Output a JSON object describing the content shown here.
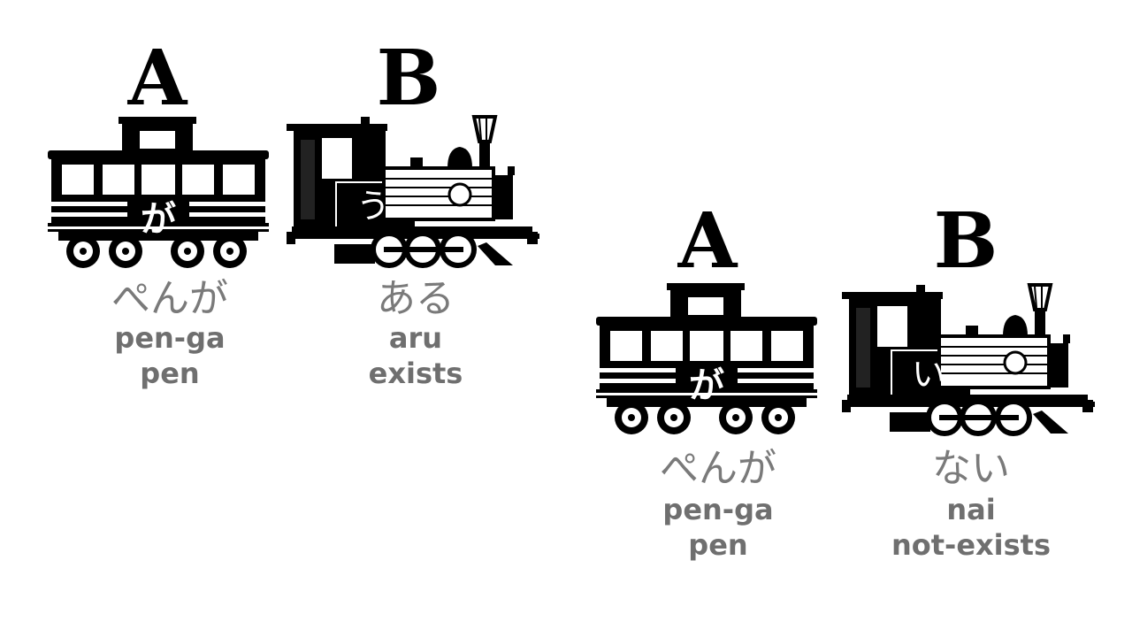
{
  "groups": [
    {
      "a_label": "A",
      "b_label": "B",
      "car_particle": "が",
      "loco_kana": "う",
      "word_a_kana": "ぺんが",
      "word_a_romaji": "pen-ga",
      "word_a_gloss": "pen",
      "word_b_kana": "ある",
      "word_b_romaji": "aru",
      "word_b_gloss": "exists"
    },
    {
      "a_label": "A",
      "b_label": "B",
      "car_particle": "が",
      "loco_kana": "い",
      "word_a_kana": "ぺんが",
      "word_a_romaji": "pen-ga",
      "word_a_gloss": "pen",
      "word_b_kana": "ない",
      "word_b_romaji": "nai",
      "word_b_gloss": "not-exists"
    }
  ]
}
